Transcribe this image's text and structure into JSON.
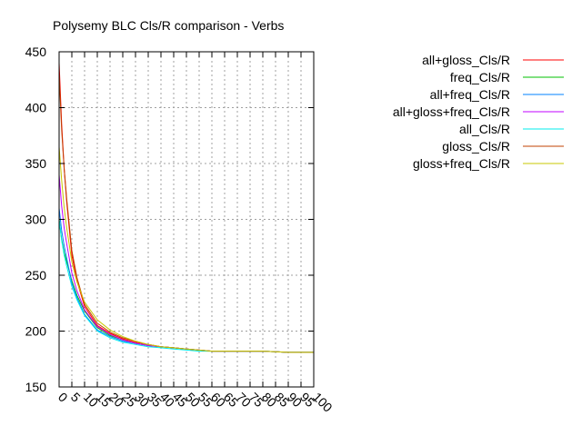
{
  "chart_data": {
    "type": "line",
    "title": "Polysemy BLC Cls/R comparison - Verbs",
    "xlabel": "",
    "ylabel": "",
    "xlim": [
      0,
      100
    ],
    "ylim": [
      150,
      450
    ],
    "grid": true,
    "legend_position": "top-right",
    "xticks": [
      0,
      5,
      10,
      15,
      20,
      25,
      30,
      35,
      40,
      45,
      50,
      55,
      60,
      65,
      70,
      75,
      80,
      85,
      90,
      95,
      100
    ],
    "xtick_labels": [
      "0",
      "5",
      "10",
      "15",
      "20",
      "25",
      "30",
      "35",
      "40",
      "45",
      "50",
      "55",
      "60",
      "65",
      "70",
      "75",
      "80",
      "85",
      "90",
      "95",
      "100"
    ],
    "yticks": [
      150,
      200,
      250,
      300,
      350,
      400,
      450
    ],
    "ytick_labels": [
      "150",
      "200",
      "250",
      "300",
      "350",
      "400",
      "450"
    ],
    "x": [
      0,
      1,
      2,
      3,
      5,
      7,
      10,
      15,
      20,
      25,
      30,
      35,
      40,
      45,
      50,
      55,
      60,
      70,
      80,
      90,
      100
    ],
    "series": [
      {
        "name": "all+gloss_Cls/R",
        "color": "#ff0000",
        "values": [
          440,
          385,
          345,
          315,
          268,
          245,
          222,
          205,
          198,
          193,
          190,
          188,
          186,
          185,
          184,
          183,
          182,
          182,
          182,
          181,
          181
        ]
      },
      {
        "name": "freq_Cls/R",
        "color": "#00c000",
        "values": [
          300,
          282,
          270,
          262,
          245,
          232,
          218,
          203,
          196,
          192,
          189,
          187,
          186,
          185,
          184,
          183,
          182,
          182,
          182,
          181,
          181
        ]
      },
      {
        "name": "all+freq_Cls/R",
        "color": "#0080ff",
        "values": [
          310,
          290,
          276,
          265,
          243,
          230,
          215,
          201,
          195,
          191,
          189,
          187,
          186,
          185,
          184,
          183,
          182,
          182,
          182,
          181,
          181
        ]
      },
      {
        "name": "all+gloss+freq_Cls/R",
        "color": "#c000ff",
        "values": [
          340,
          312,
          292,
          278,
          252,
          236,
          219,
          204,
          197,
          192,
          189,
          187,
          186,
          185,
          184,
          183,
          182,
          182,
          182,
          181,
          181
        ]
      },
      {
        "name": "all_Cls/R",
        "color": "#00eeee",
        "values": [
          300,
          281,
          268,
          258,
          240,
          228,
          214,
          200,
          194,
          190,
          188,
          186,
          185,
          184,
          183,
          182,
          182,
          182,
          182,
          181,
          181
        ]
      },
      {
        "name": "gloss_Cls/R",
        "color": "#c04000",
        "values": [
          430,
          380,
          345,
          318,
          272,
          248,
          224,
          207,
          199,
          194,
          191,
          188,
          186,
          185,
          184,
          183,
          182,
          182,
          182,
          181,
          181
        ]
      },
      {
        "name": "gloss+freq_Cls/R",
        "color": "#c8c800",
        "values": [
          365,
          335,
          310,
          292,
          262,
          244,
          226,
          210,
          201,
          195,
          191,
          188,
          186,
          185,
          184,
          183,
          182,
          182,
          182,
          181,
          181
        ]
      }
    ]
  }
}
